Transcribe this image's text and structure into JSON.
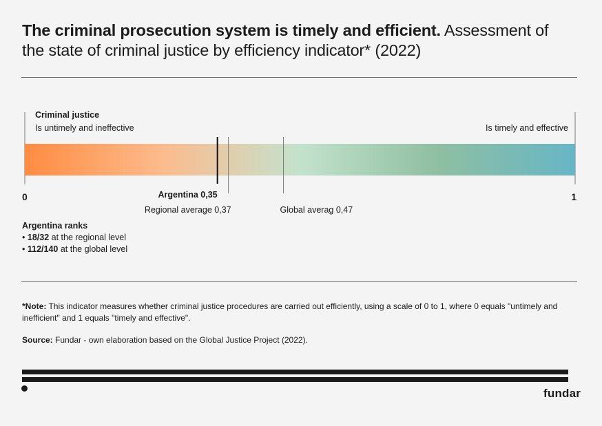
{
  "title": {
    "bold": "The criminal prosecution system is timely and efficient.",
    "rest": "Assessment of the state of criminal justice by efficiency indicator* (2022)"
  },
  "chart_data": {
    "type": "scale-bar",
    "label": "Criminal justice",
    "left_label": "Is untimely and ineffective",
    "right_label": "Is timely and effective",
    "min": 0,
    "max": 1,
    "min_label": "0",
    "max_label": "1",
    "gradient_colors": [
      "#ff8c42",
      "#fdbb8d",
      "#c3e2cd",
      "#8fbfa2",
      "#67b6c6"
    ],
    "markers": [
      {
        "name": "Argentina",
        "value": 0.35,
        "label": "Argentina 0,35",
        "emphasis": true
      },
      {
        "name": "Regional average",
        "value": 0.37,
        "label": "Regional average 0,37",
        "emphasis": false
      },
      {
        "name": "Global average",
        "value": 0.47,
        "label": "Global averag 0,47",
        "emphasis": false
      }
    ]
  },
  "ranks": {
    "heading": "Argentina ranks",
    "items": [
      {
        "bullet": "•",
        "value": "18/32",
        "text": " at the regional level"
      },
      {
        "bullet": "•",
        "value": "112/140",
        "text": " at the global level"
      }
    ]
  },
  "note": {
    "label": "*Note:",
    "text": " This indicator measures whether criminal justice procedures are carried out efficiently, using a scale of 0 to 1, where 0 equals \"untimely and inefficient\" and 1 equals \"timely and effective\"."
  },
  "source": {
    "label": "Source:",
    "text": " Fundar - own elaboration based on the Global Justice Project (2022)."
  },
  "brand": "fundar"
}
